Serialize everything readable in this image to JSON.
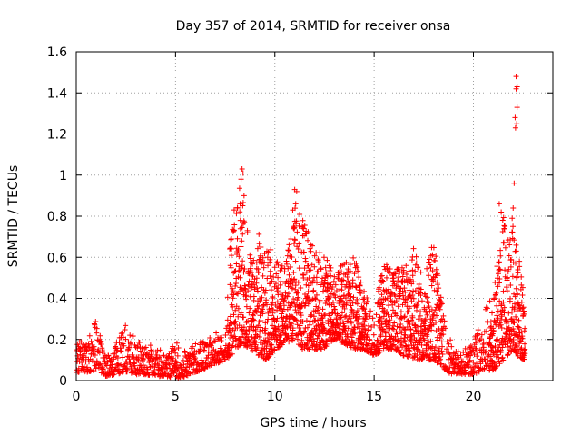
{
  "chart_data": {
    "type": "scatter",
    "title": "Day 357 of 2014, SRMTID for receiver onsa",
    "xlabel": "GPS time / hours",
    "ylabel": "SRMTID / TECUs",
    "xlim": [
      0,
      24
    ],
    "ylim": [
      0,
      1.6
    ],
    "xticks": [
      0,
      5,
      10,
      15,
      20
    ],
    "xtick_labels": [
      "0",
      "5",
      "10",
      "15",
      "20"
    ],
    "yticks": [
      0,
      0.2,
      0.4,
      0.6,
      0.8,
      1.0,
      1.2,
      1.4,
      1.6
    ],
    "ytick_labels": [
      "0",
      "0.2",
      "0.4",
      "0.6",
      "0.8",
      "1",
      "1.2",
      "1.4",
      "1.6"
    ],
    "grid": true,
    "marker": "+",
    "marker_color": "#ff0000",
    "series": [
      {
        "name": "SRMTID",
        "envelope": [
          [
            0.0,
            0.04,
            0.2
          ],
          [
            0.5,
            0.04,
            0.18
          ],
          [
            1.0,
            0.05,
            0.3
          ],
          [
            1.5,
            0.02,
            0.12
          ],
          [
            2.0,
            0.03,
            0.18
          ],
          [
            2.5,
            0.04,
            0.28
          ],
          [
            3.0,
            0.03,
            0.2
          ],
          [
            3.5,
            0.03,
            0.17
          ],
          [
            4.0,
            0.02,
            0.18
          ],
          [
            4.5,
            0.02,
            0.12
          ],
          [
            5.0,
            0.01,
            0.2
          ],
          [
            5.5,
            0.02,
            0.14
          ],
          [
            6.0,
            0.04,
            0.18
          ],
          [
            6.5,
            0.06,
            0.2
          ],
          [
            7.0,
            0.08,
            0.25
          ],
          [
            7.5,
            0.1,
            0.2
          ],
          [
            7.8,
            0.12,
            0.78
          ],
          [
            8.3,
            0.18,
            0.97
          ],
          [
            8.8,
            0.15,
            0.6
          ],
          [
            9.2,
            0.12,
            0.72
          ],
          [
            9.6,
            0.1,
            0.7
          ],
          [
            10.0,
            0.15,
            0.6
          ],
          [
            10.5,
            0.18,
            0.55
          ],
          [
            11.0,
            0.2,
            0.85
          ],
          [
            11.4,
            0.15,
            0.8
          ],
          [
            12.0,
            0.15,
            0.65
          ],
          [
            12.5,
            0.15,
            0.6
          ],
          [
            13.0,
            0.2,
            0.55
          ],
          [
            13.5,
            0.18,
            0.58
          ],
          [
            14.0,
            0.15,
            0.62
          ],
          [
            14.5,
            0.15,
            0.45
          ],
          [
            15.0,
            0.12,
            0.3
          ],
          [
            15.5,
            0.15,
            0.62
          ],
          [
            16.0,
            0.15,
            0.55
          ],
          [
            16.5,
            0.12,
            0.55
          ],
          [
            17.0,
            0.1,
            0.65
          ],
          [
            17.5,
            0.1,
            0.5
          ],
          [
            18.0,
            0.1,
            0.7
          ],
          [
            18.5,
            0.06,
            0.35
          ],
          [
            19.0,
            0.02,
            0.14
          ],
          [
            19.5,
            0.03,
            0.15
          ],
          [
            20.0,
            0.03,
            0.2
          ],
          [
            20.5,
            0.05,
            0.32
          ],
          [
            21.0,
            0.05,
            0.45
          ],
          [
            21.5,
            0.1,
            0.8
          ],
          [
            22.0,
            0.15,
            0.75
          ],
          [
            22.4,
            0.1,
            0.55
          ],
          [
            22.6,
            0.1,
            0.4
          ]
        ],
        "outliers": [
          [
            8.35,
            1.03
          ],
          [
            8.4,
            1.01
          ],
          [
            8.3,
            0.98
          ],
          [
            8.45,
            0.9
          ],
          [
            8.25,
            0.86
          ],
          [
            11.0,
            0.93
          ],
          [
            11.1,
            0.92
          ],
          [
            11.05,
            0.86
          ],
          [
            10.9,
            0.83
          ],
          [
            21.3,
            0.86
          ],
          [
            21.4,
            0.82
          ],
          [
            22.15,
            1.48
          ],
          [
            22.2,
            1.43
          ],
          [
            22.15,
            1.42
          ],
          [
            22.2,
            1.33
          ],
          [
            22.1,
            1.28
          ],
          [
            22.18,
            1.25
          ],
          [
            22.12,
            1.23
          ],
          [
            22.05,
            0.96
          ],
          [
            22.0,
            0.84
          ],
          [
            21.95,
            0.79
          ]
        ]
      }
    ]
  }
}
